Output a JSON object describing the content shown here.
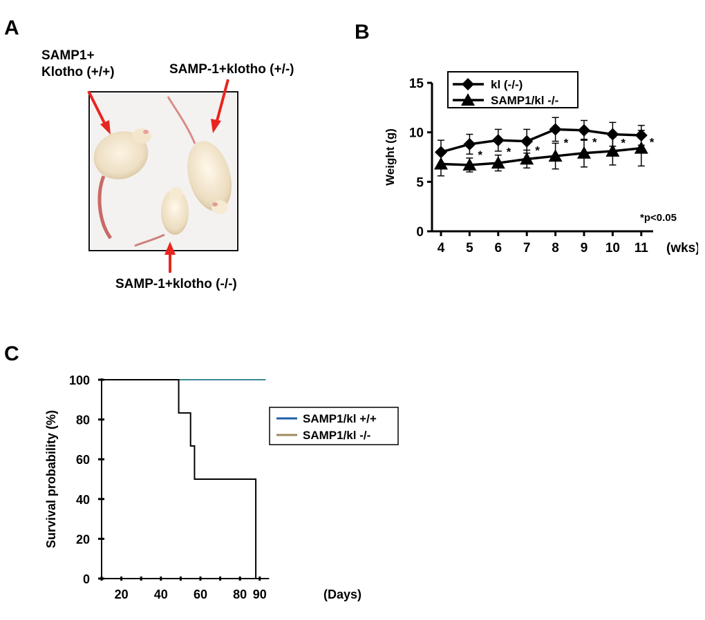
{
  "panels": {
    "a": {
      "letter": "A",
      "label_wt_line1": "SAMP1+",
      "label_wt_line2": "Klotho (+/+)",
      "label_het": "SAMP-1+klotho (+/-)",
      "label_ko": "SAMP-1+klotho (-/-)",
      "arrow_color": "#e8251f"
    },
    "b": {
      "letter": "B"
    },
    "c": {
      "letter": "C"
    }
  },
  "chart_data": [
    {
      "type": "line",
      "panel": "B",
      "title": "",
      "xlabel": "",
      "x_unit": "(wks)",
      "ylabel": "Weight (g)",
      "categories": [
        "4",
        "5",
        "6",
        "7",
        "8",
        "9",
        "10",
        "11"
      ],
      "x": [
        4,
        5,
        6,
        7,
        8,
        9,
        10,
        11
      ],
      "ylim": [
        0,
        15
      ],
      "yticks": [
        0,
        5,
        10,
        15
      ],
      "legend_position": "top-left",
      "series": [
        {
          "name": "kl (-/-)",
          "marker": "diamond",
          "values": [
            8.0,
            8.8,
            9.2,
            9.1,
            10.3,
            10.2,
            9.8,
            9.7
          ],
          "errors": [
            1.2,
            1.0,
            1.1,
            1.2,
            1.2,
            1.0,
            1.2,
            1.0
          ]
        },
        {
          "name": "SAMP1/kl -/-",
          "marker": "triangle",
          "values": [
            6.8,
            6.7,
            6.9,
            7.3,
            7.6,
            7.9,
            8.1,
            8.4
          ],
          "errors": [
            1.2,
            0.7,
            0.8,
            0.9,
            1.3,
            1.4,
            1.4,
            1.8
          ]
        }
      ],
      "annotations": {
        "star_label": "*",
        "star_weeks": [
          5,
          6,
          7,
          8,
          9,
          10,
          11
        ],
        "significance": "*p<0.05"
      },
      "color": "#000000"
    },
    {
      "type": "line",
      "panel": "C",
      "title": "",
      "xlabel": "",
      "x_unit": "(Days)",
      "ylabel": "Survival probability (%)",
      "xlim": [
        10,
        93
      ],
      "xticks": [
        20,
        40,
        60,
        80,
        90
      ],
      "ylim": [
        0,
        100
      ],
      "yticks": [
        0,
        20,
        40,
        60,
        80,
        100
      ],
      "legend_position": "middle-right",
      "series": [
        {
          "name": "SAMP1/kl +/+",
          "legend_color": "#1f5fa8",
          "line_color": "#3a8a92",
          "step_x": [
            10,
            93
          ],
          "step_y": [
            100,
            100
          ]
        },
        {
          "name": "SAMP1/kl  -/-",
          "legend_color": "#a08a5c",
          "line_color": "#000000",
          "step_x": [
            10,
            49,
            55,
            57,
            88,
            88
          ],
          "step_y": [
            100,
            83.3,
            66.7,
            50,
            50,
            0
          ]
        }
      ]
    }
  ]
}
